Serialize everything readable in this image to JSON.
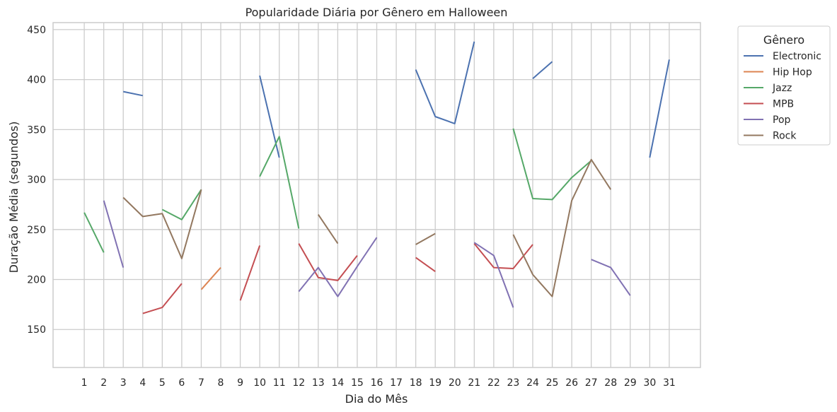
{
  "chart_data": {
    "type": "line",
    "title": "Popularidade Diária por Gênero em Halloween",
    "xlabel": "Dia do Mês",
    "ylabel": "Duração Média (segundos)",
    "x_ticks": [
      1,
      2,
      3,
      4,
      5,
      6,
      7,
      8,
      9,
      10,
      11,
      12,
      13,
      14,
      15,
      16,
      17,
      18,
      19,
      20,
      21,
      22,
      23,
      24,
      25,
      26,
      27,
      28,
      29,
      30,
      31
    ],
    "y_ticks": [
      150,
      200,
      250,
      300,
      350,
      400,
      450
    ],
    "ylim": [
      112,
      457
    ],
    "xlim": [
      -0.6,
      32.6
    ],
    "grid": true,
    "legend": {
      "title": "Gênero",
      "placement": "outside-top-right"
    },
    "series": [
      {
        "name": "Electronic",
        "color": "#4c72b0",
        "points": [
          [
            3,
            388
          ],
          [
            4,
            384
          ],
          [
            5,
            null
          ],
          [
            10,
            404
          ],
          [
            11,
            322
          ],
          [
            12,
            null
          ],
          [
            18,
            410
          ],
          [
            19,
            363
          ],
          [
            20,
            356
          ],
          [
            21,
            438
          ],
          [
            22,
            null
          ],
          [
            24,
            401
          ],
          [
            25,
            418
          ],
          [
            26,
            null
          ],
          [
            30,
            322
          ],
          [
            31,
            420
          ]
        ]
      },
      {
        "name": "Hip Hop",
        "color": "#dd8452",
        "points": [
          [
            7,
            190
          ],
          [
            8,
            212
          ]
        ]
      },
      {
        "name": "Jazz",
        "color": "#55a868",
        "points": [
          [
            1,
            267
          ],
          [
            2,
            227
          ],
          [
            3,
            null
          ],
          [
            5,
            270
          ],
          [
            6,
            260
          ],
          [
            7,
            290
          ],
          [
            8,
            null
          ],
          [
            10,
            303
          ],
          [
            11,
            343
          ],
          [
            12,
            251
          ],
          [
            13,
            null
          ],
          [
            23,
            351
          ],
          [
            24,
            281
          ],
          [
            25,
            280
          ],
          [
            26,
            302
          ],
          [
            27,
            319
          ]
        ]
      },
      {
        "name": "MPB",
        "color": "#c44e52",
        "points": [
          [
            4,
            166
          ],
          [
            5,
            172
          ],
          [
            6,
            196
          ],
          [
            7,
            null
          ],
          [
            9,
            179
          ],
          [
            10,
            234
          ],
          [
            11,
            null
          ],
          [
            12,
            236
          ],
          [
            13,
            202
          ],
          [
            14,
            199
          ],
          [
            15,
            224
          ],
          [
            16,
            null
          ],
          [
            18,
            222
          ],
          [
            19,
            208
          ],
          [
            20,
            null
          ],
          [
            21,
            236
          ],
          [
            22,
            212
          ],
          [
            23,
            211
          ],
          [
            24,
            235
          ]
        ]
      },
      {
        "name": "Pop",
        "color": "#8172b3",
        "points": [
          [
            2,
            279
          ],
          [
            3,
            212
          ],
          [
            4,
            null
          ],
          [
            12,
            188
          ],
          [
            13,
            212
          ],
          [
            14,
            183
          ],
          [
            15,
            213
          ],
          [
            16,
            242
          ],
          [
            17,
            null
          ],
          [
            21,
            237
          ],
          [
            22,
            224
          ],
          [
            23,
            172
          ],
          [
            24,
            null
          ],
          [
            27,
            220
          ],
          [
            28,
            212
          ],
          [
            29,
            184
          ]
        ]
      },
      {
        "name": "Rock",
        "color": "#937860",
        "points": [
          [
            3,
            282
          ],
          [
            4,
            263
          ],
          [
            5,
            266
          ],
          [
            6,
            221
          ],
          [
            7,
            290
          ],
          [
            8,
            null
          ],
          [
            13,
            265
          ],
          [
            14,
            236
          ],
          [
            15,
            null
          ],
          [
            18,
            235
          ],
          [
            19,
            246
          ],
          [
            20,
            null
          ],
          [
            23,
            245
          ],
          [
            24,
            205
          ],
          [
            25,
            183
          ],
          [
            26,
            279
          ],
          [
            27,
            320
          ],
          [
            28,
            290
          ]
        ]
      }
    ]
  }
}
